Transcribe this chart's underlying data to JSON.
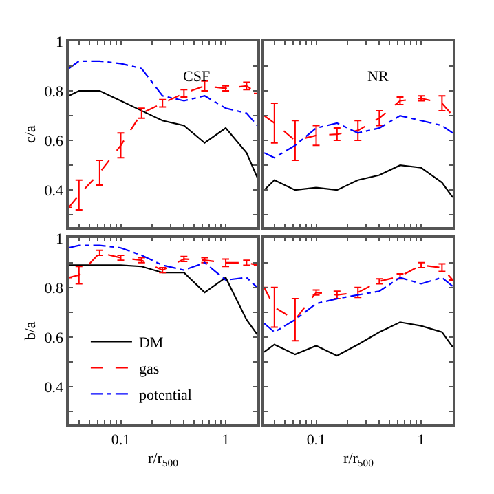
{
  "chart_data": [
    {
      "type": "line",
      "annotations": [
        "CSF"
      ],
      "ylabel": "c/a",
      "x": [
        0.032,
        0.04,
        0.063,
        0.1,
        0.158,
        0.25,
        0.4,
        0.63,
        1,
        1.58,
        2
      ],
      "xlim": [
        0.032,
        2
      ],
      "ylim": [
        0.25,
        1
      ],
      "log": "x",
      "legend": false,
      "tick_labels": "y",
      "xticks": [
        {
          "value": 0.04,
          "label": null
        },
        {
          "value": 0.05,
          "label": null
        },
        {
          "value": 0.06,
          "label": null
        },
        {
          "value": 0.07,
          "label": null
        },
        {
          "value": 0.08,
          "label": null
        },
        {
          "value": 0.09,
          "label": null
        },
        {
          "value": 0.1,
          "label": null
        },
        {
          "value": 0.2,
          "label": null
        },
        {
          "value": 0.3,
          "label": null
        },
        {
          "value": 0.4,
          "label": null
        },
        {
          "value": 0.5,
          "label": null
        },
        {
          "value": 0.6,
          "label": null
        },
        {
          "value": 0.7,
          "label": null
        },
        {
          "value": 0.8,
          "label": null
        },
        {
          "value": 0.9,
          "label": null
        },
        {
          "value": 1,
          "label": null
        },
        {
          "value": 2,
          "label": null
        }
      ],
      "yticks": [
        {
          "value": 0.3,
          "label": null
        },
        0.4,
        {
          "value": 0.5,
          "label": null
        },
        0.6,
        {
          "value": 0.7,
          "label": null
        },
        0.8,
        {
          "value": 0.9,
          "label": null
        },
        1
      ],
      "series": [
        {
          "color": "#000000",
          "line_style": "solid",
          "values": [
            0.78,
            0.8,
            0.8,
            0.76,
            0.72,
            0.68,
            0.66,
            0.59,
            0.65,
            0.55,
            0.45
          ]
        },
        {
          "color": "#ff0000",
          "line_style": "dashed",
          "values": [
            0.33,
            0.38,
            0.47,
            0.58,
            0.71,
            0.75,
            0.79,
            0.82,
            0.81,
            0.82,
            0.79
          ],
          "errors": [
            null,
            0.06,
            0.05,
            0.05,
            0.02,
            0.015,
            0.015,
            0.02,
            0.01,
            0.015,
            null
          ]
        },
        {
          "color": "#0000ff",
          "line_style": "dashdot",
          "values": [
            0.89,
            0.92,
            0.92,
            0.91,
            0.89,
            0.78,
            0.76,
            0.78,
            0.73,
            0.71,
            0.66
          ]
        }
      ]
    },
    {
      "type": "line",
      "annotations": [
        "NR"
      ],
      "x": [
        0.032,
        0.04,
        0.063,
        0.1,
        0.158,
        0.25,
        0.4,
        0.63,
        1,
        1.58,
        2
      ],
      "xlim": [
        0.032,
        2
      ],
      "ylim": [
        0.25,
        1
      ],
      "log": "x",
      "legend": false,
      "tick_labels": false,
      "xticks": [
        {
          "value": 0.04,
          "label": null
        },
        {
          "value": 0.05,
          "label": null
        },
        {
          "value": 0.06,
          "label": null
        },
        {
          "value": 0.07,
          "label": null
        },
        {
          "value": 0.08,
          "label": null
        },
        {
          "value": 0.09,
          "label": null
        },
        {
          "value": 0.1,
          "label": null
        },
        {
          "value": 0.2,
          "label": null
        },
        {
          "value": 0.3,
          "label": null
        },
        {
          "value": 0.4,
          "label": null
        },
        {
          "value": 0.5,
          "label": null
        },
        {
          "value": 0.6,
          "label": null
        },
        {
          "value": 0.7,
          "label": null
        },
        {
          "value": 0.8,
          "label": null
        },
        {
          "value": 0.9,
          "label": null
        },
        {
          "value": 1,
          "label": null
        },
        {
          "value": 2,
          "label": null
        }
      ],
      "yticks": [
        {
          "value": 0.3,
          "label": null
        },
        {
          "value": 0.4,
          "label": null
        },
        {
          "value": 0.5,
          "label": null
        },
        {
          "value": 0.6,
          "label": null
        },
        {
          "value": 0.7,
          "label": null
        },
        {
          "value": 0.8,
          "label": null
        },
        {
          "value": 0.9,
          "label": null
        },
        {
          "value": 1,
          "label": null
        }
      ],
      "series": [
        {
          "color": "#000000",
          "line_style": "solid",
          "values": [
            0.4,
            0.44,
            0.4,
            0.41,
            0.4,
            0.44,
            0.46,
            0.5,
            0.49,
            0.43,
            0.37
          ]
        },
        {
          "color": "#ff0000",
          "line_style": "dashed",
          "values": [
            0.7,
            0.67,
            0.6,
            0.62,
            0.625,
            0.64,
            0.69,
            0.76,
            0.77,
            0.75,
            0.7
          ],
          "errors": [
            null,
            0.08,
            0.08,
            0.04,
            0.025,
            0.04,
            0.03,
            0.015,
            0.01,
            0.03,
            null
          ]
        },
        {
          "color": "#0000ff",
          "line_style": "dashdot",
          "values": [
            0.55,
            0.53,
            0.58,
            0.65,
            0.67,
            0.63,
            0.65,
            0.7,
            0.68,
            0.66,
            0.63
          ]
        }
      ]
    },
    {
      "type": "line",
      "ylabel": "b/a",
      "xlabel": "r/r$_{500}$",
      "x": [
        0.032,
        0.04,
        0.063,
        0.1,
        0.158,
        0.25,
        0.4,
        0.63,
        1,
        1.58,
        2
      ],
      "xlim": [
        0.032,
        2
      ],
      "ylim": [
        0.25,
        1
      ],
      "log": "x",
      "legend": "bottom left",
      "xticks": [
        {
          "value": 0.04,
          "label": null
        },
        {
          "value": 0.05,
          "label": null
        },
        {
          "value": 0.06,
          "label": null
        },
        {
          "value": 0.07,
          "label": null
        },
        {
          "value": 0.08,
          "label": null
        },
        {
          "value": 0.09,
          "label": null
        },
        {
          "value": 0.1,
          "label": "0.1"
        },
        {
          "value": 0.2,
          "label": null
        },
        {
          "value": 0.3,
          "label": null
        },
        {
          "value": 0.4,
          "label": null
        },
        {
          "value": 0.5,
          "label": null
        },
        {
          "value": 0.6,
          "label": null
        },
        {
          "value": 0.7,
          "label": null
        },
        {
          "value": 0.8,
          "label": null
        },
        {
          "value": 0.9,
          "label": null
        },
        {
          "value": 1,
          "label": "1"
        },
        {
          "value": 2,
          "label": null
        }
      ],
      "yticks": [
        {
          "value": 0.3,
          "label": null
        },
        0.4,
        {
          "value": 0.5,
          "label": null
        },
        0.6,
        {
          "value": 0.7,
          "label": null
        },
        0.8,
        {
          "value": 0.9,
          "label": null
        },
        1
      ],
      "series": [
        {
          "name": "DM",
          "color": "#000000",
          "line_style": "solid",
          "values": [
            0.89,
            0.89,
            0.89,
            0.89,
            0.885,
            0.86,
            0.86,
            0.78,
            0.84,
            0.67,
            0.61
          ]
        },
        {
          "name": "gas",
          "color": "#ff0000",
          "line_style": "dashed",
          "values": [
            0.84,
            0.85,
            0.94,
            0.92,
            0.91,
            0.87,
            0.915,
            0.91,
            0.9,
            0.9,
            0.89
          ],
          "errors": [
            null,
            0.035,
            0.01,
            0.01,
            0.01,
            0.01,
            0.01,
            0.01,
            0.015,
            0.01,
            null
          ]
        },
        {
          "name": "potential",
          "color": "#0000ff",
          "line_style": "dashdot",
          "values": [
            0.96,
            0.97,
            0.97,
            0.96,
            0.93,
            0.89,
            0.87,
            0.9,
            0.83,
            0.84,
            0.8
          ]
        }
      ]
    },
    {
      "type": "line",
      "xlabel": "r/r$_{500}$",
      "x": [
        0.032,
        0.04,
        0.063,
        0.1,
        0.158,
        0.25,
        0.4,
        0.63,
        1,
        1.58,
        2
      ],
      "xlim": [
        0.032,
        2
      ],
      "ylim": [
        0.25,
        1
      ],
      "log": "x",
      "legend": false,
      "tick_labels": "x",
      "xticks": [
        {
          "value": 0.04,
          "label": null
        },
        {
          "value": 0.05,
          "label": null
        },
        {
          "value": 0.06,
          "label": null
        },
        {
          "value": 0.07,
          "label": null
        },
        {
          "value": 0.08,
          "label": null
        },
        {
          "value": 0.09,
          "label": null
        },
        {
          "value": 0.1,
          "label": "0.1"
        },
        {
          "value": 0.2,
          "label": null
        },
        {
          "value": 0.3,
          "label": null
        },
        {
          "value": 0.4,
          "label": null
        },
        {
          "value": 0.5,
          "label": null
        },
        {
          "value": 0.6,
          "label": null
        },
        {
          "value": 0.7,
          "label": null
        },
        {
          "value": 0.8,
          "label": null
        },
        {
          "value": 0.9,
          "label": null
        },
        {
          "value": 1,
          "label": "1"
        },
        {
          "value": 2,
          "label": null
        }
      ],
      "yticks": [
        {
          "value": 0.3,
          "label": null
        },
        {
          "value": 0.4,
          "label": null
        },
        {
          "value": 0.5,
          "label": null
        },
        {
          "value": 0.6,
          "label": null
        },
        {
          "value": 0.7,
          "label": null
        },
        {
          "value": 0.8,
          "label": null
        },
        {
          "value": 0.9,
          "label": null
        },
        {
          "value": 1,
          "label": null
        }
      ],
      "series": [
        {
          "color": "#000000",
          "line_style": "solid",
          "values": [
            0.54,
            0.57,
            0.53,
            0.565,
            0.525,
            0.57,
            0.62,
            0.66,
            0.645,
            0.62,
            0.56
          ]
        },
        {
          "color": "#ff0000",
          "line_style": "dashed",
          "values": [
            0.8,
            0.72,
            0.67,
            0.78,
            0.77,
            0.78,
            0.825,
            0.845,
            0.89,
            0.88,
            0.83
          ],
          "errors": [
            null,
            0.08,
            0.085,
            0.01,
            0.015,
            0.02,
            0.01,
            0.01,
            0.01,
            0.015,
            null
          ]
        },
        {
          "color": "#0000ff",
          "line_style": "dashdot",
          "values": [
            0.655,
            0.62,
            0.67,
            0.735,
            0.755,
            0.77,
            0.785,
            0.84,
            0.815,
            0.84,
            0.805
          ]
        }
      ]
    }
  ]
}
